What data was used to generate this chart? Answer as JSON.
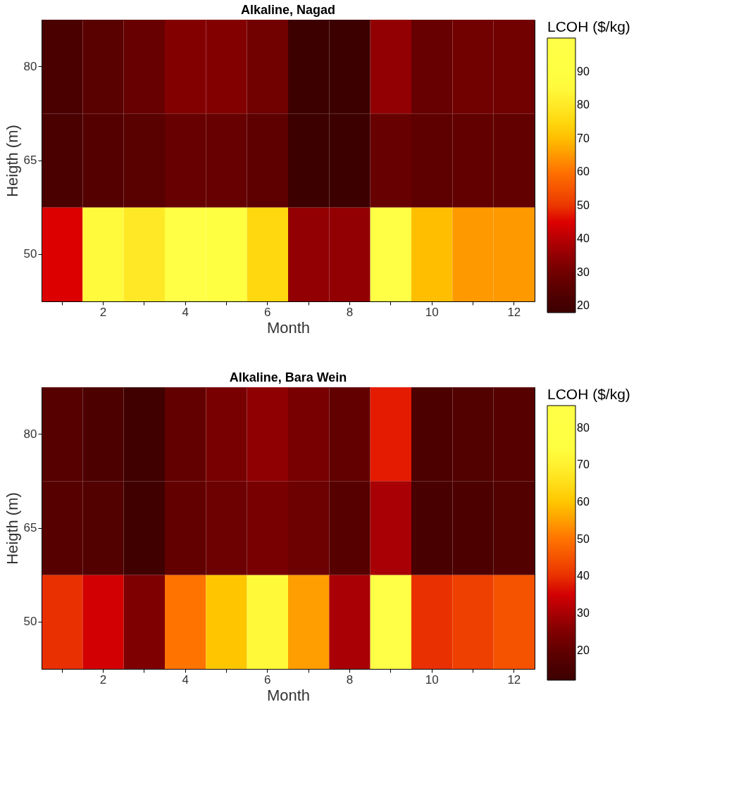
{
  "chart_data": [
    {
      "type": "heatmap",
      "title": "Alkaline, Nagad",
      "xlabel": "Month",
      "ylabel": "Heigth (m)",
      "clabel": "LCOH ($/kg)",
      "categories": [
        null,
        "2",
        null,
        "4",
        null,
        "6",
        null,
        "8",
        null,
        "10",
        null,
        "12"
      ],
      "y_categories": [
        "80",
        "65",
        "50"
      ],
      "cells": [
        [
          22,
          25,
          28,
          33,
          33,
          30,
          18,
          18,
          35,
          28,
          30,
          30
        ],
        [
          22,
          24,
          25,
          28,
          28,
          26,
          18,
          18,
          28,
          26,
          27,
          27
        ],
        [
          45,
          85,
          80,
          97,
          90,
          75,
          35,
          35,
          97,
          70,
          65,
          65
        ]
      ],
      "clim": [
        18,
        100
      ],
      "cticks": [
        20,
        30,
        40,
        50,
        60,
        70,
        80,
        90
      ]
    },
    {
      "type": "heatmap",
      "title": "Alkaline, Bara Wein",
      "xlabel": "Month",
      "ylabel": "Heigth (m)",
      "clabel": "LCOH ($/kg)",
      "categories": [
        null,
        "2",
        null,
        "4",
        null,
        "6",
        null,
        "8",
        null,
        "10",
        null,
        "12"
      ],
      "y_categories": [
        "80",
        "65",
        "50"
      ],
      "cells": [
        [
          18,
          16,
          13,
          20,
          24,
          27,
          24,
          20,
          38,
          16,
          17,
          18
        ],
        [
          18,
          17,
          13,
          20,
          22,
          24,
          22,
          18,
          30,
          15,
          16,
          17
        ],
        [
          40,
          35,
          25,
          50,
          60,
          72,
          55,
          30,
          86,
          40,
          42,
          45
        ]
      ],
      "clim": [
        12,
        86
      ],
      "cticks": [
        20,
        30,
        40,
        50,
        60,
        70,
        80
      ]
    }
  ]
}
